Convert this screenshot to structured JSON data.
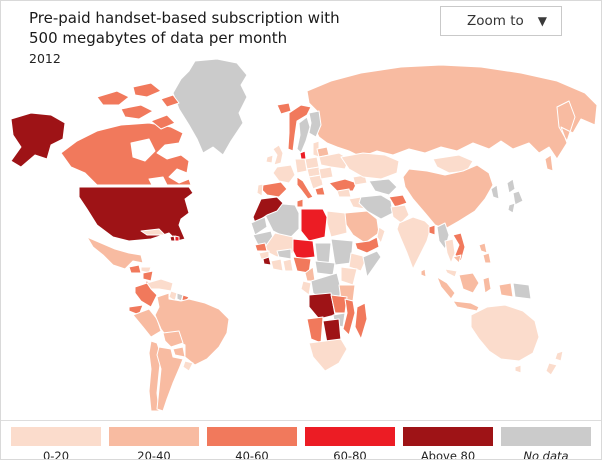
{
  "header": {
    "title_lines": [
      "Pre-paid handset-based subscription with",
      "500 megabytes of data per month"
    ],
    "year": "2012"
  },
  "zoom_control": {
    "label": "Zoom to",
    "icon": "▼"
  },
  "legend": {
    "items": [
      {
        "label": "0-20",
        "category": "0-20",
        "color": "#fbdccc",
        "italic": false
      },
      {
        "label": "20-40",
        "category": "20-40",
        "color": "#f8bba1",
        "italic": false
      },
      {
        "label": "40-60",
        "category": "40-60",
        "color": "#f1795c",
        "italic": false
      },
      {
        "label": "60-80",
        "category": "60-80",
        "color": "#ec1c24",
        "italic": false
      },
      {
        "label": "Above 80",
        "category": "above-80",
        "color": "#9e1316",
        "italic": false
      },
      {
        "label": "No data",
        "category": "no-data",
        "color": "#cbcbcb",
        "italic": true
      }
    ],
    "water_color": "#ffffff"
  },
  "map": {
    "countries": [
      {
        "id": "greenland",
        "category": "no-data"
      },
      {
        "id": "russia",
        "category": "20-40"
      },
      {
        "id": "canada",
        "category": "40-60"
      },
      {
        "id": "canada-arctic-1",
        "category": "40-60"
      },
      {
        "id": "canada-arctic-2",
        "category": "40-60"
      },
      {
        "id": "canada-arctic-3",
        "category": "40-60"
      },
      {
        "id": "canada-arctic-4",
        "category": "40-60"
      },
      {
        "id": "canada-arctic-5",
        "category": "40-60"
      },
      {
        "id": "hudson-bay",
        "category": "water"
      },
      {
        "id": "alaska",
        "category": "above-80"
      },
      {
        "id": "usa",
        "category": "above-80"
      },
      {
        "id": "great-lakes",
        "category": "water"
      },
      {
        "id": "mexico",
        "category": "20-40"
      },
      {
        "id": "guatemala",
        "category": "40-60"
      },
      {
        "id": "honduras",
        "category": "0-20"
      },
      {
        "id": "nicaragua",
        "category": "40-60"
      },
      {
        "id": "costa-rica-panama",
        "category": "40-60"
      },
      {
        "id": "cuba",
        "category": "0-20"
      },
      {
        "id": "haiti",
        "category": "above-80"
      },
      {
        "id": "dominican-republic",
        "category": "60-80"
      },
      {
        "id": "venezuela",
        "category": "0-20"
      },
      {
        "id": "colombia",
        "category": "40-60"
      },
      {
        "id": "ecuador",
        "category": "40-60"
      },
      {
        "id": "guyana",
        "category": "0-20"
      },
      {
        "id": "suriname",
        "category": "no-data"
      },
      {
        "id": "french-guiana",
        "category": "40-60"
      },
      {
        "id": "peru",
        "category": "20-40"
      },
      {
        "id": "brazil",
        "category": "20-40"
      },
      {
        "id": "bolivia",
        "category": "20-40"
      },
      {
        "id": "paraguay",
        "category": "20-40"
      },
      {
        "id": "uruguay",
        "category": "0-20"
      },
      {
        "id": "chile",
        "category": "20-40"
      },
      {
        "id": "argentina",
        "category": "20-40"
      },
      {
        "id": "iceland",
        "category": "40-60"
      },
      {
        "id": "united-kingdom",
        "category": "0-20"
      },
      {
        "id": "ireland",
        "category": "0-20"
      },
      {
        "id": "norway",
        "category": "40-60"
      },
      {
        "id": "sweden",
        "category": "no-data"
      },
      {
        "id": "finland",
        "category": "no-data"
      },
      {
        "id": "denmark",
        "category": "60-80"
      },
      {
        "id": "baltics",
        "category": "0-20"
      },
      {
        "id": "belarus",
        "category": "20-40"
      },
      {
        "id": "poland",
        "category": "0-20"
      },
      {
        "id": "germany",
        "category": "0-20"
      },
      {
        "id": "france",
        "category": "0-20"
      },
      {
        "id": "spain",
        "category": "40-60"
      },
      {
        "id": "portugal",
        "category": "0-20"
      },
      {
        "id": "italy",
        "category": "40-60"
      },
      {
        "id": "central-europe",
        "category": "0-20"
      },
      {
        "id": "balkans",
        "category": "0-20"
      },
      {
        "id": "greece",
        "category": "40-60"
      },
      {
        "id": "romania",
        "category": "0-20"
      },
      {
        "id": "ukraine",
        "category": "0-20"
      },
      {
        "id": "turkey",
        "category": "40-60"
      },
      {
        "id": "caucasus",
        "category": "0-20"
      },
      {
        "id": "syria-levant",
        "category": "0-20"
      },
      {
        "id": "iraq",
        "category": "0-20"
      },
      {
        "id": "iran",
        "category": "no-data"
      },
      {
        "id": "afghanistan",
        "category": "40-60"
      },
      {
        "id": "pakistan",
        "category": "0-20"
      },
      {
        "id": "kazakhstan",
        "category": "0-20"
      },
      {
        "id": "turkmenistan-uzbekistan",
        "category": "no-data"
      },
      {
        "id": "mongolia",
        "category": "0-20"
      },
      {
        "id": "china",
        "category": "20-40"
      },
      {
        "id": "korea",
        "category": "no-data"
      },
      {
        "id": "japan",
        "category": "no-data"
      },
      {
        "id": "india",
        "category": "0-20"
      },
      {
        "id": "sri-lanka",
        "category": "20-40"
      },
      {
        "id": "bangladesh",
        "category": "40-60"
      },
      {
        "id": "myanmar",
        "category": "no-data"
      },
      {
        "id": "thailand",
        "category": "0-20"
      },
      {
        "id": "vietnam",
        "category": "40-60"
      },
      {
        "id": "cambodia",
        "category": "20-40"
      },
      {
        "id": "malaysia",
        "category": "0-20"
      },
      {
        "id": "sumatra",
        "category": "20-40"
      },
      {
        "id": "java",
        "category": "20-40"
      },
      {
        "id": "borneo",
        "category": "20-40"
      },
      {
        "id": "sulawesi",
        "category": "20-40"
      },
      {
        "id": "west-papua",
        "category": "20-40"
      },
      {
        "id": "papua-new-guinea",
        "category": "no-data"
      },
      {
        "id": "philippines",
        "category": "20-40"
      },
      {
        "id": "saudi-arabia",
        "category": "20-40"
      },
      {
        "id": "yemen",
        "category": "40-60"
      },
      {
        "id": "oman",
        "category": "0-20"
      },
      {
        "id": "algeria",
        "category": "no-data"
      },
      {
        "id": "morocco",
        "category": "above-80"
      },
      {
        "id": "tunisia",
        "category": "40-60"
      },
      {
        "id": "western-sahara",
        "category": "no-data"
      },
      {
        "id": "libya",
        "category": "60-80"
      },
      {
        "id": "egypt",
        "category": "0-20"
      },
      {
        "id": "mauritania",
        "category": "no-data"
      },
      {
        "id": "mali",
        "category": "0-20"
      },
      {
        "id": "niger",
        "category": "60-80"
      },
      {
        "id": "chad",
        "category": "no-data"
      },
      {
        "id": "sudan",
        "category": "no-data"
      },
      {
        "id": "ethiopia",
        "category": "0-20"
      },
      {
        "id": "somalia",
        "category": "no-data"
      },
      {
        "id": "senegal",
        "category": "40-60"
      },
      {
        "id": "guinea",
        "category": "0-20"
      },
      {
        "id": "sierra-leone",
        "category": "above-80"
      },
      {
        "id": "burkina-faso",
        "category": "no-data"
      },
      {
        "id": "ivory-coast",
        "category": "0-20"
      },
      {
        "id": "ghana",
        "category": "0-20"
      },
      {
        "id": "nigeria",
        "category": "40-60"
      },
      {
        "id": "cameroon",
        "category": "20-40"
      },
      {
        "id": "central-african-republic",
        "category": "no-data"
      },
      {
        "id": "gabon-congo",
        "category": "0-20"
      },
      {
        "id": "drc",
        "category": "no-data"
      },
      {
        "id": "uganda-kenya",
        "category": "0-20"
      },
      {
        "id": "tanzania",
        "category": "20-40"
      },
      {
        "id": "angola",
        "category": "above-80"
      },
      {
        "id": "zambia",
        "category": "40-60"
      },
      {
        "id": "zimbabwe",
        "category": "no-data"
      },
      {
        "id": "mozambique",
        "category": "40-60"
      },
      {
        "id": "namibia",
        "category": "40-60"
      },
      {
        "id": "botswana",
        "category": "above-80"
      },
      {
        "id": "south-africa",
        "category": "0-20"
      },
      {
        "id": "madagascar",
        "category": "40-60"
      },
      {
        "id": "australia",
        "category": "0-20"
      },
      {
        "id": "tasmania",
        "category": "0-20"
      },
      {
        "id": "new-zealand",
        "category": "0-20"
      }
    ]
  }
}
